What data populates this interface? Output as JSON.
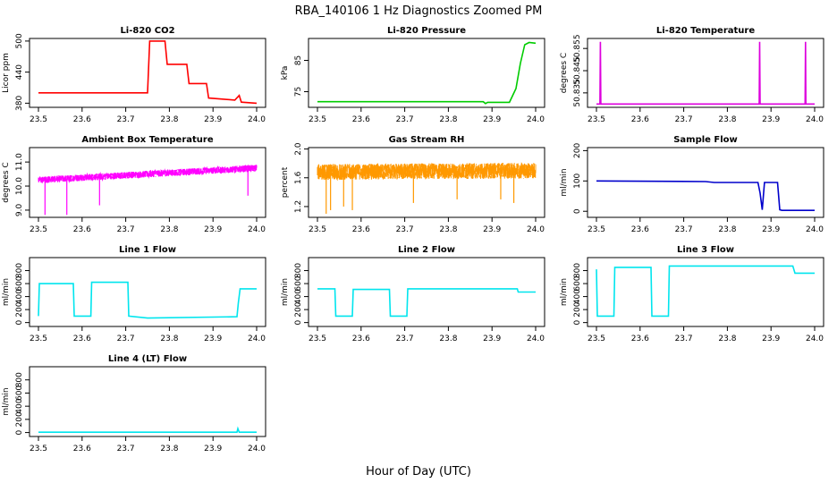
{
  "figure": {
    "title": "RBA_140106  1 Hz Diagnostics Zoomed PM",
    "xlabel": "Hour of Day (UTC)"
  },
  "chart_data": [
    {
      "type": "line",
      "title": "Li-820 CO2",
      "ylabel": "Licor ppm",
      "color": "#ff0000",
      "xlim": [
        23.5,
        24.0
      ],
      "ylim": [
        372,
        505
      ],
      "xticks": [
        "23.5",
        "23.6",
        "23.7",
        "23.8",
        "23.9",
        "24.0"
      ],
      "yticks": [
        380,
        440,
        500
      ],
      "x": [
        23.5,
        23.75,
        23.755,
        23.79,
        23.795,
        23.84,
        23.845,
        23.885,
        23.89,
        23.95,
        23.96,
        23.965,
        24.0
      ],
      "y": [
        400,
        400,
        500,
        500,
        455,
        455,
        418,
        418,
        390,
        386,
        395,
        382,
        380
      ]
    },
    {
      "type": "line",
      "title": "Li-820 Pressure",
      "ylabel": "kPa",
      "color": "#00cc00",
      "xlim": [
        23.5,
        24.0
      ],
      "ylim": [
        70,
        92
      ],
      "xticks": [
        "23.5",
        "23.6",
        "23.7",
        "23.8",
        "23.9",
        "24.0"
      ],
      "yticks": [
        75,
        85
      ],
      "x": [
        23.5,
        23.88,
        23.885,
        23.89,
        23.94,
        23.955,
        23.965,
        23.975,
        23.985,
        24.0
      ],
      "y": [
        71.8,
        71.8,
        71.2,
        71.6,
        71.6,
        76,
        84,
        90,
        90.7,
        90.5
      ]
    },
    {
      "type": "line",
      "title": "Li-820 Temperature",
      "ylabel": "degrees C",
      "color": "#dd00dd",
      "xlim": [
        23.5,
        24.0
      ],
      "ylim": [
        50.8285,
        50.8595
      ],
      "xticks": [
        "23.5",
        "23.6",
        "23.7",
        "23.8",
        "23.9",
        "24.0"
      ],
      "yticks": [
        50.835,
        50.845,
        50.855
      ],
      "tick_labels": [
        "50.835",
        "50.845",
        "50.855"
      ],
      "x": [
        23.5,
        23.508,
        23.509,
        23.51,
        23.873,
        23.874,
        23.875,
        23.978,
        23.979,
        23.98,
        24.0
      ],
      "y": [
        50.83,
        50.83,
        50.858,
        50.83,
        50.83,
        50.858,
        50.83,
        50.83,
        50.858,
        50.83,
        50.83
      ]
    },
    {
      "type": "line",
      "title": "Ambient Box Temperature",
      "ylabel": "degrees C",
      "color": "#ff00ff",
      "xlim": [
        23.5,
        24.0
      ],
      "ylim": [
        8.7,
        11.6
      ],
      "xticks": [
        "23.5",
        "23.6",
        "23.7",
        "23.8",
        "23.9",
        "24.0"
      ],
      "yticks": [
        9.0,
        10.0,
        11.0
      ],
      "tick_labels": [
        "9.0",
        "10.0",
        "11.0"
      ],
      "trend_x": [
        23.5,
        24.0
      ],
      "trend_y": [
        10.25,
        10.75
      ],
      "noise": 0.28,
      "spikes_x": [
        23.515,
        23.565,
        23.64,
        23.98
      ],
      "spikes_y": [
        8.8,
        8.8,
        9.2,
        9.6
      ]
    },
    {
      "type": "line",
      "title": "Gas Stream RH",
      "ylabel": "percent",
      "color": "#ff9900",
      "xlim": [
        23.5,
        24.0
      ],
      "ylim": [
        1.05,
        2.02
      ],
      "xticks": [
        "23.5",
        "23.6",
        "23.7",
        "23.8",
        "23.9",
        "24.0"
      ],
      "yticks": [
        1.2,
        1.6,
        2.0
      ],
      "tick_labels": [
        "1.2",
        "1.6",
        "2.0"
      ],
      "trend_x": [
        23.5,
        24.0
      ],
      "trend_y": [
        1.68,
        1.7
      ],
      "noise": 0.22,
      "spikes_x": [
        23.52,
        23.53,
        23.56,
        23.58,
        23.72,
        23.82,
        23.92,
        23.95
      ],
      "spikes_y": [
        1.1,
        1.15,
        1.2,
        1.15,
        1.25,
        1.3,
        1.3,
        1.25
      ]
    },
    {
      "type": "line",
      "title": "Sample Flow",
      "ylabel": "ml/min",
      "color": "#0000cc",
      "xlim": [
        23.5,
        24.0
      ],
      "ylim": [
        -20,
        210
      ],
      "xticks": [
        "23.5",
        "23.6",
        "23.7",
        "23.8",
        "23.9",
        "24.0"
      ],
      "yticks": [
        0,
        100,
        200
      ],
      "x": [
        23.5,
        23.75,
        23.77,
        23.87,
        23.875,
        23.88,
        23.885,
        23.915,
        23.92,
        23.925,
        24.0
      ],
      "y": [
        100,
        98,
        95,
        95,
        60,
        5,
        95,
        95,
        5,
        3,
        3
      ]
    },
    {
      "type": "line",
      "title": "Line 1 Flow",
      "ylabel": "ml/min",
      "color": "#00e5ee",
      "xlim": [
        23.5,
        24.0
      ],
      "ylim": [
        -60,
        1000
      ],
      "xticks": [
        "23.5",
        "23.6",
        "23.7",
        "23.8",
        "23.9",
        "24.0"
      ],
      "yticks": [
        0,
        200,
        400,
        600,
        800
      ],
      "x": [
        23.5,
        23.502,
        23.58,
        23.582,
        23.62,
        23.622,
        23.705,
        23.707,
        23.75,
        23.955,
        23.958,
        23.962,
        24.0
      ],
      "y": [
        100,
        600,
        600,
        100,
        100,
        620,
        620,
        100,
        70,
        90,
        300,
        520,
        520
      ]
    },
    {
      "type": "line",
      "title": "Line 2 Flow",
      "ylabel": "ml/min",
      "color": "#00e5ee",
      "xlim": [
        23.5,
        24.0
      ],
      "ylim": [
        -60,
        1000
      ],
      "xticks": [
        "23.5",
        "23.6",
        "23.7",
        "23.8",
        "23.9",
        "24.0"
      ],
      "yticks": [
        0,
        200,
        400,
        600,
        800
      ],
      "x": [
        23.5,
        23.54,
        23.542,
        23.58,
        23.582,
        23.665,
        23.667,
        23.705,
        23.707,
        23.958,
        23.96,
        24.0
      ],
      "y": [
        520,
        520,
        100,
        100,
        510,
        510,
        100,
        100,
        520,
        520,
        470,
        470
      ]
    },
    {
      "type": "line",
      "title": "Line 3 Flow",
      "ylabel": "ml/min",
      "color": "#00e5ee",
      "xlim": [
        23.5,
        24.0
      ],
      "ylim": [
        -60,
        1000
      ],
      "xticks": [
        "23.5",
        "23.6",
        "23.7",
        "23.8",
        "23.9",
        "24.0"
      ],
      "yticks": [
        0,
        200,
        400,
        600,
        800
      ],
      "x": [
        23.5,
        23.502,
        23.54,
        23.542,
        23.625,
        23.627,
        23.665,
        23.667,
        23.95,
        23.955,
        24.0
      ],
      "y": [
        820,
        100,
        100,
        850,
        850,
        100,
        100,
        870,
        870,
        760,
        760
      ]
    },
    {
      "type": "line",
      "title": "Line 4 (LT) Flow",
      "ylabel": "ml/min",
      "color": "#00e5ee",
      "xlim": [
        23.5,
        24.0
      ],
      "ylim": [
        -60,
        1000
      ],
      "xticks": [
        "23.5",
        "23.6",
        "23.7",
        "23.8",
        "23.9",
        "24.0"
      ],
      "yticks": [
        0,
        200,
        400,
        600,
        800
      ],
      "x": [
        23.5,
        23.955,
        23.957,
        23.96,
        24.0
      ],
      "y": [
        5,
        5,
        60,
        5,
        5
      ]
    }
  ]
}
